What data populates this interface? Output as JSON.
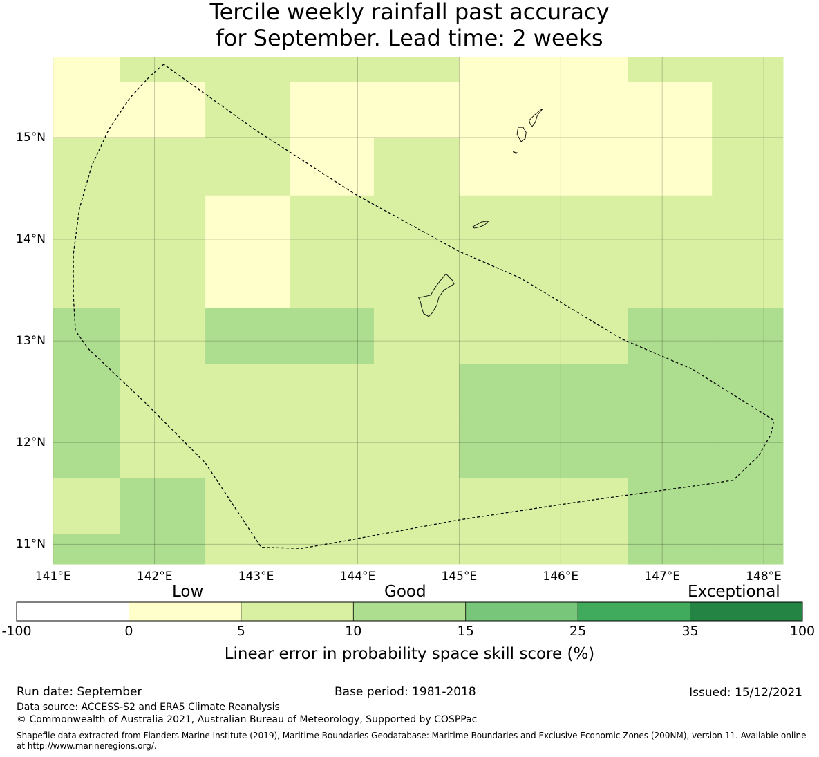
{
  "title_line1": "Tercile weekly rainfall past accuracy",
  "title_line2": "for September. Lead time: 2 weeks",
  "map": {
    "lon_labels": [
      "141°E",
      "142°E",
      "143°E",
      "144°E",
      "145°E",
      "146°E",
      "147°E",
      "148°E"
    ],
    "lat_labels": [
      "15°N",
      "14°N",
      "13°N",
      "12°N",
      "11°N"
    ],
    "extent": {
      "lon_min": 140.995,
      "lon_max": 148.19,
      "lat_min": 10.805,
      "lat_max": 15.795
    },
    "grid_lines": true,
    "skill_grid": {
      "lon_edges": [
        140.995,
        141.66,
        142.5,
        143.33,
        144.16,
        145.0,
        145.83,
        146.66,
        147.49,
        148.19
      ],
      "lat_edges_top_to_bottom": [
        15.795,
        15.55,
        15.0,
        14.43,
        13.88,
        13.32,
        12.77,
        12.21,
        11.65,
        11.1,
        10.805
      ],
      "classes": [
        [
          "low",
          "good5",
          "good5",
          "good5",
          "good5",
          "low",
          "low",
          "good5",
          "good5"
        ],
        [
          "low",
          "low",
          "good5",
          "low",
          "low",
          "low",
          "low",
          "low",
          "good5"
        ],
        [
          "good5",
          "good5",
          "good5",
          "low",
          "good5",
          "low",
          "low",
          "low",
          "good5"
        ],
        [
          "good5",
          "good5",
          "low",
          "good5",
          "good5",
          "good5",
          "good5",
          "good5",
          "good5"
        ],
        [
          "good5",
          "good5",
          "low",
          "good5",
          "good5",
          "good5",
          "good5",
          "good5",
          "good5"
        ],
        [
          "good10",
          "good5",
          "good10",
          "good10",
          "good5",
          "good5",
          "good5",
          "good10",
          "good10"
        ],
        [
          "good10",
          "good5",
          "good5",
          "good5",
          "good5",
          "good10",
          "good10",
          "good10",
          "good10"
        ],
        [
          "good10",
          "good5",
          "good5",
          "good5",
          "good5",
          "good10",
          "good10",
          "good10",
          "good10"
        ],
        [
          "good5",
          "good10",
          "good5",
          "good5",
          "good5",
          "good5",
          "good5",
          "good10",
          "good10"
        ],
        [
          "good10",
          "good10",
          "good5",
          "good5",
          "good5",
          "good5",
          "good5",
          "good10",
          "good10"
        ]
      ]
    },
    "eez_boundary_lonlat": [
      [
        142.09,
        15.72
      ],
      [
        141.95,
        15.6
      ],
      [
        141.75,
        15.38
      ],
      [
        141.55,
        15.08
      ],
      [
        141.38,
        14.72
      ],
      [
        141.26,
        14.3
      ],
      [
        141.2,
        13.85
      ],
      [
        141.2,
        13.45
      ],
      [
        141.22,
        13.1
      ],
      [
        141.35,
        12.92
      ],
      [
        141.9,
        12.4
      ],
      [
        142.5,
        11.8
      ],
      [
        143.05,
        10.97
      ],
      [
        143.45,
        10.96
      ],
      [
        143.8,
        11.02
      ],
      [
        145.0,
        11.24
      ],
      [
        146.2,
        11.42
      ],
      [
        147.5,
        11.6
      ],
      [
        147.7,
        11.63
      ],
      [
        147.95,
        11.87
      ],
      [
        148.07,
        12.08
      ],
      [
        148.1,
        12.22
      ],
      [
        147.3,
        12.72
      ],
      [
        146.6,
        13.02
      ],
      [
        145.6,
        13.62
      ],
      [
        145.0,
        13.88
      ],
      [
        143.98,
        14.44
      ],
      [
        143.0,
        15.07
      ],
      [
        142.09,
        15.72
      ]
    ],
    "islands_lonlat": [
      [
        [
          144.62,
          13.43
        ],
        [
          144.72,
          13.45
        ],
        [
          144.76,
          13.52
        ],
        [
          144.82,
          13.6
        ],
        [
          144.87,
          13.66
        ],
        [
          144.93,
          13.6
        ],
        [
          144.95,
          13.56
        ],
        [
          144.85,
          13.5
        ],
        [
          144.8,
          13.43
        ],
        [
          144.78,
          13.35
        ],
        [
          144.73,
          13.27
        ],
        [
          144.7,
          13.24
        ],
        [
          144.65,
          13.27
        ],
        [
          144.63,
          13.33
        ],
        [
          144.62,
          13.38
        ],
        [
          144.6,
          13.43
        ],
        [
          144.62,
          13.43
        ]
      ],
      [
        [
          145.13,
          14.12
        ],
        [
          145.22,
          14.17
        ],
        [
          145.29,
          14.18
        ],
        [
          145.25,
          14.14
        ],
        [
          145.2,
          14.12
        ],
        [
          145.15,
          14.11
        ],
        [
          145.13,
          14.12
        ]
      ],
      [
        [
          145.58,
          15.1
        ],
        [
          145.63,
          15.1
        ],
        [
          145.66,
          15.05
        ],
        [
          145.65,
          14.99
        ],
        [
          145.61,
          14.96
        ],
        [
          145.57,
          15.03
        ],
        [
          145.58,
          15.1
        ]
      ],
      [
        [
          145.69,
          15.17
        ],
        [
          145.74,
          15.22
        ],
        [
          145.8,
          15.27
        ],
        [
          145.82,
          15.28
        ],
        [
          145.77,
          15.22
        ],
        [
          145.75,
          15.15
        ],
        [
          145.72,
          15.11
        ],
        [
          145.7,
          15.13
        ],
        [
          145.69,
          15.17
        ]
      ],
      [
        [
          145.53,
          14.86
        ],
        [
          145.57,
          14.85
        ],
        [
          145.56,
          14.84
        ],
        [
          145.53,
          14.86
        ]
      ]
    ]
  },
  "colorbar": {
    "categories": [
      "Low",
      "Good",
      "Exceptional"
    ],
    "boundaries": [
      "-100",
      "0",
      "5",
      "10",
      "15",
      "25",
      "35",
      "100"
    ],
    "colors": [
      "#ffffff",
      "#ffffcc",
      "#d9f0a3",
      "#addd8e",
      "#78c679",
      "#41ab5d",
      "#238443"
    ],
    "label": "Linear error in probability space skill score (%)"
  },
  "class_colors": {
    "low": "#ffffcc",
    "good5": "#d9f0a3",
    "good10": "#addd8e"
  },
  "footer": {
    "run_date": "Run date: September",
    "base_period": "Base period: 1981-2018",
    "issued": "Issued: 15/12/2021",
    "data_source": "Data source: ACCESS-S2 and ERA5 Climate Reanalysis",
    "copyright": "© Commonwealth of Australia 2021, Australian Bureau of Meteorology, Supported by COSPPac",
    "shapefile_line1": "Shapefile data extracted from Flanders Marine Institute (2019), Maritime Boundaries Geodatabase: Maritime Boundaries and Exclusive Economic Zones (200NM), version 11. Available online",
    "shapefile_line2": "at http://www.marineregions.org/."
  }
}
